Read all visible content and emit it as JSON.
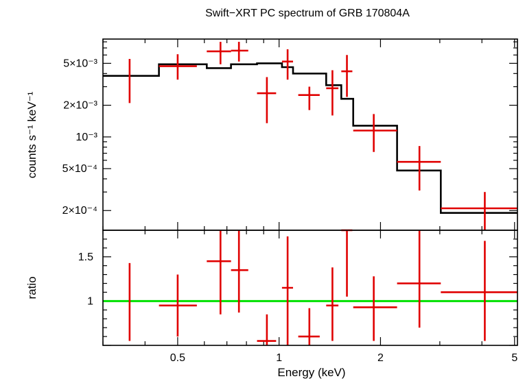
{
  "chart_data": [
    {
      "type": "scatter",
      "title": "Swift−XRT PC spectrum of GRB 170804A",
      "ylabel": "counts s⁻¹ keV⁻¹",
      "xscale": "log",
      "yscale": "log",
      "xlim": [
        0.3,
        5.1
      ],
      "ylim": [
        0.00013,
        0.0085
      ],
      "ytick_labels": [
        {
          "value": 0.005,
          "label": "5×10⁻³"
        },
        {
          "value": 0.002,
          "label": "2×10⁻³"
        },
        {
          "value": 0.001,
          "label": "10⁻³"
        },
        {
          "value": 0.0005,
          "label": "5×10⁻⁴"
        },
        {
          "value": 0.0002,
          "label": "2×10⁻⁴"
        }
      ],
      "series": [
        {
          "kind": "data",
          "color": "#e00000",
          "points": [
            {
              "x": 0.36,
              "xlo": 0.36,
              "xhi": 0.36,
              "y": 0.0038,
              "ylo": 0.0021,
              "yhi": 0.0055
            },
            {
              "x": 0.5,
              "xlo": 0.44,
              "xhi": 0.57,
              "y": 0.0047,
              "ylo": 0.0035,
              "yhi": 0.0061
            },
            {
              "x": 0.67,
              "xlo": 0.61,
              "xhi": 0.72,
              "y": 0.0065,
              "ylo": 0.0049,
              "yhi": 0.008
            },
            {
              "x": 0.76,
              "xlo": 0.72,
              "xhi": 0.81,
              "y": 0.0066,
              "ylo": 0.0052,
              "yhi": 0.008
            },
            {
              "x": 0.92,
              "xlo": 0.86,
              "xhi": 0.98,
              "y": 0.0026,
              "ylo": 0.00135,
              "yhi": 0.0037
            },
            {
              "x": 1.06,
              "xlo": 1.02,
              "xhi": 1.1,
              "y": 0.0052,
              "ylo": 0.0035,
              "yhi": 0.0068
            },
            {
              "x": 1.23,
              "xlo": 1.14,
              "xhi": 1.32,
              "y": 0.0025,
              "ylo": 0.0018,
              "yhi": 0.003
            },
            {
              "x": 1.44,
              "xlo": 1.38,
              "xhi": 1.5,
              "y": 0.0029,
              "ylo": 0.0016,
              "yhi": 0.0043
            },
            {
              "x": 1.59,
              "xlo": 1.53,
              "xhi": 1.65,
              "y": 0.0042,
              "ylo": 0.0024,
              "yhi": 0.006
            },
            {
              "x": 1.91,
              "xlo": 1.66,
              "xhi": 2.24,
              "y": 0.00115,
              "ylo": 0.00072,
              "yhi": 0.00165
            },
            {
              "x": 2.61,
              "xlo": 2.24,
              "xhi": 3.02,
              "y": 0.00058,
              "ylo": 0.00031,
              "yhi": 0.00082
            },
            {
              "x": 4.08,
              "xlo": 3.02,
              "xhi": 5.1,
              "y": 0.00021,
              "ylo": 0.00013,
              "yhi": 0.0003
            }
          ]
        },
        {
          "kind": "model",
          "color": "#000000",
          "steps": [
            {
              "x0": 0.3,
              "x1": 0.44,
              "y": 0.0038
            },
            {
              "x0": 0.44,
              "x1": 0.61,
              "y": 0.0049
            },
            {
              "x0": 0.61,
              "x1": 0.72,
              "y": 0.0045
            },
            {
              "x0": 0.72,
              "x1": 0.86,
              "y": 0.0049
            },
            {
              "x0": 0.86,
              "x1": 1.02,
              "y": 0.005
            },
            {
              "x0": 1.02,
              "x1": 1.1,
              "y": 0.0046
            },
            {
              "x0": 1.1,
              "x1": 1.38,
              "y": 0.004
            },
            {
              "x0": 1.38,
              "x1": 1.53,
              "y": 0.0031
            },
            {
              "x0": 1.53,
              "x1": 1.66,
              "y": 0.0023
            },
            {
              "x0": 1.66,
              "x1": 2.24,
              "y": 0.00128
            },
            {
              "x0": 2.24,
              "x1": 3.02,
              "y": 0.00048
            },
            {
              "x0": 3.02,
              "x1": 5.1,
              "y": 0.00019
            }
          ]
        }
      ]
    },
    {
      "type": "scatter",
      "xlabel": "Energy (keV)",
      "ylabel": "ratio",
      "xscale": "log",
      "xlim": [
        0.3,
        5.1
      ],
      "ylim": [
        0.5,
        1.8
      ],
      "xtick_labels": [
        {
          "value": 0.5,
          "label": "0.5"
        },
        {
          "value": 1,
          "label": "1"
        },
        {
          "value": 2,
          "label": "2"
        },
        {
          "value": 5,
          "label": "5"
        }
      ],
      "ytick_labels": [
        {
          "value": 1.5,
          "label": "1.5"
        },
        {
          "value": 1,
          "label": "1"
        }
      ],
      "reference_line": {
        "y": 1,
        "color": "#00e000"
      },
      "series": [
        {
          "kind": "data",
          "color": "#e00000",
          "points": [
            {
              "x": 0.36,
              "xlo": 0.36,
              "xhi": 0.36,
              "y": 1.0,
              "ylo": 0.55,
              "yhi": 1.43
            },
            {
              "x": 0.5,
              "xlo": 0.44,
              "xhi": 0.57,
              "y": 0.95,
              "ylo": 0.6,
              "yhi": 1.3
            },
            {
              "x": 0.67,
              "xlo": 0.61,
              "xhi": 0.72,
              "y": 1.45,
              "ylo": 0.85,
              "yhi": 1.8
            },
            {
              "x": 0.76,
              "xlo": 0.72,
              "xhi": 0.81,
              "y": 1.35,
              "ylo": 0.87,
              "yhi": 1.8
            },
            {
              "x": 0.92,
              "xlo": 0.86,
              "xhi": 0.98,
              "y": 0.55,
              "ylo": 0.5,
              "yhi": 0.85
            },
            {
              "x": 1.06,
              "xlo": 1.02,
              "xhi": 1.1,
              "y": 1.15,
              "ylo": 0.5,
              "yhi": 1.73
            },
            {
              "x": 1.23,
              "xlo": 1.14,
              "xhi": 1.32,
              "y": 0.6,
              "ylo": 0.5,
              "yhi": 0.92
            },
            {
              "x": 1.44,
              "xlo": 1.38,
              "xhi": 1.5,
              "y": 0.95,
              "ylo": 0.55,
              "yhi": 1.38
            },
            {
              "x": 1.59,
              "xlo": 1.53,
              "xhi": 1.65,
              "y": 1.8,
              "ylo": 1.05,
              "yhi": 1.8
            },
            {
              "x": 1.91,
              "xlo": 1.66,
              "xhi": 2.24,
              "y": 0.93,
              "ylo": 0.55,
              "yhi": 1.28
            },
            {
              "x": 2.61,
              "xlo": 2.24,
              "xhi": 3.02,
              "y": 1.2,
              "ylo": 0.7,
              "yhi": 1.8
            },
            {
              "x": 4.08,
              "xlo": 3.02,
              "xhi": 5.1,
              "y": 1.1,
              "ylo": 0.55,
              "yhi": 1.68
            }
          ]
        }
      ]
    }
  ]
}
